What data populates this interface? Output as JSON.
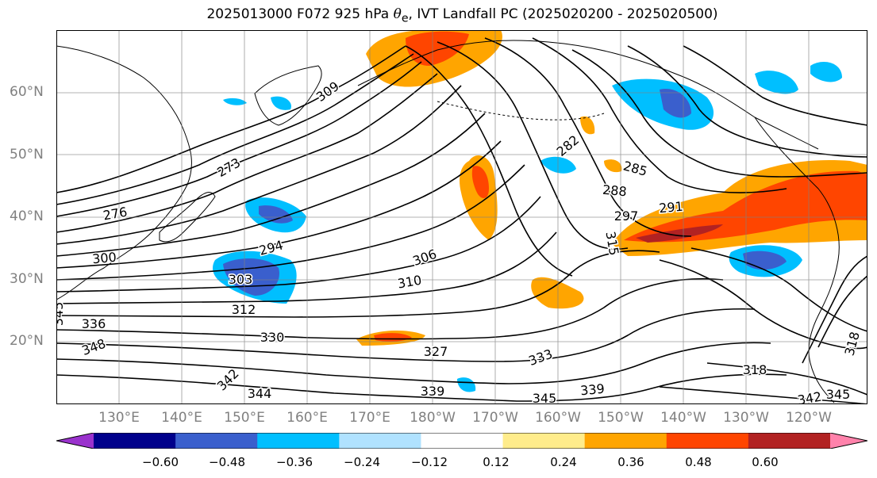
{
  "title": {
    "prefix": "2025013000 F072 925 hPa ",
    "symbol": "θ",
    "subscript": "e",
    "suffix": ", IVT Landfall PC (2025020200 - 2025020500)"
  },
  "map": {
    "projection": "PlateCarree (120°E – 117°W, 10°N – 70°N)",
    "lat_labels": [
      "60°N",
      "50°N",
      "40°N",
      "30°N",
      "20°N"
    ],
    "lon_labels": [
      "130°E",
      "140°E",
      "150°E",
      "160°E",
      "170°E",
      "180°W",
      "170°W",
      "160°W",
      "150°W",
      "140°W",
      "130°W",
      "120°W"
    ],
    "contour_labels": [
      "273",
      "276",
      "282",
      "285",
      "288",
      "291",
      "294",
      "297",
      "300",
      "303",
      "306",
      "309",
      "310",
      "312",
      "315",
      "318",
      "318",
      "327",
      "330",
      "333",
      "336",
      "339",
      "339",
      "342",
      "342",
      "344",
      "345",
      "345",
      "345",
      "348"
    ],
    "fill_colors": {
      "neg_0.60": "#9a32cd",
      "neg_0.48": "#00008b",
      "neg_0.36": "#3a5fcd",
      "neg_0.24": "#00bfff",
      "neg_0.12": "#b0e2ff",
      "pos_0.12": "#ffec8b",
      "pos_0.24": "#ffa500",
      "pos_0.36": "#ff4500",
      "pos_0.48": "#b22222",
      "pos_0.60": "#ff82ab"
    }
  },
  "colorbar": {
    "colors": [
      "#9a32cd",
      "#00008b",
      "#3a5fcd",
      "#00bfff",
      "#b0e2ff",
      "#ffffff",
      "#ffec8b",
      "#ffa500",
      "#ff4500",
      "#b22222",
      "#ff82ab"
    ],
    "tick_labels": [
      "−0.60",
      "−0.48",
      "−0.36",
      "−0.24",
      "−0.12",
      "0.12",
      "0.24",
      "0.36",
      "0.48",
      "0.60"
    ]
  }
}
